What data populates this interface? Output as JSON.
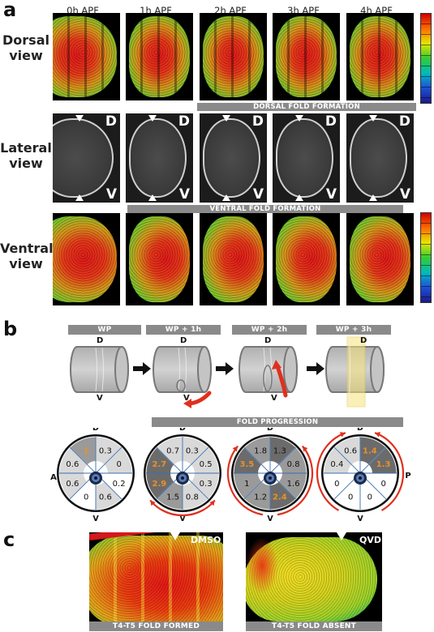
{
  "panel_a": {
    "label": "a",
    "timepoints": [
      "0h APF",
      "1h APF",
      "2h APF",
      "3h APF",
      "4h APF"
    ],
    "rows": [
      {
        "label_line1": "Dorsal",
        "label_line2": "view"
      },
      {
        "label_line1": "Lateral",
        "label_line2": "view"
      },
      {
        "label_line1": "Ventral",
        "label_line2": "view"
      }
    ],
    "dorsal_bar": "DORSAL FOLD FORMATION",
    "ventral_bar": "VENTRAL FOLD FORMATION",
    "d_letter": "D",
    "v_letter": "V"
  },
  "panel_b": {
    "label": "b",
    "stages": [
      "WP",
      "WP + 1h",
      "WP + 2h",
      "WP + 3h"
    ],
    "fold_bar": "FOLD PROGRESSION",
    "d": "D",
    "v": "V",
    "a": "A",
    "p": "P",
    "colors": {
      "orange": "#e8912a",
      "red_arrow": "#e0301e",
      "light": "#d9d9d9",
      "mid": "#9a9a9a",
      "dark": "#6b6b6b"
    },
    "circles": [
      {
        "values": [
          "0.3",
          "0",
          "0.2",
          "0.6",
          "0",
          "0.6",
          "0.6",
          "1"
        ]
      },
      {
        "values": [
          "0.3",
          "0.5",
          "0.3",
          "0.8",
          "1.5",
          "2.9",
          "2.7",
          "0.7"
        ]
      },
      {
        "values": [
          "1.3",
          "0.8",
          "1.6",
          "2.4",
          "1.2",
          "1",
          "3.5",
          "1.8"
        ]
      },
      {
        "values": [
          "1.4",
          "1.3",
          "0",
          "0",
          "0",
          "0",
          "0.4",
          "0.6"
        ]
      }
    ]
  },
  "panel_c": {
    "label": "c",
    "left_tag": "DMSO",
    "right_tag": "QVD",
    "left_bar": "T4-T5 FOLD FORMED",
    "right_bar": "T4-T5 FOLD ABSENT"
  }
}
